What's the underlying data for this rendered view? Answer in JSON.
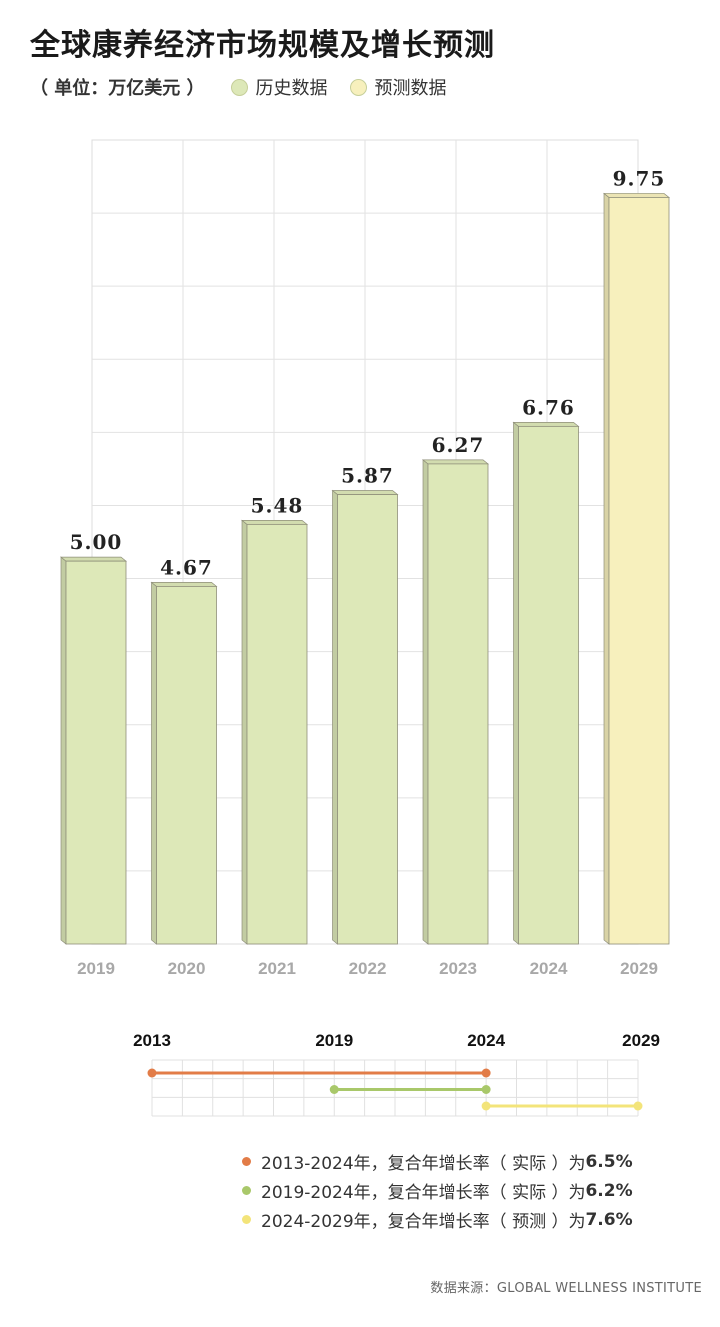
{
  "title": "全球康养经济市场规模及增长预测",
  "unit_label": "（ 单位：万亿美元 ）",
  "legend": [
    {
      "label": "历史数据",
      "color": "#dde8b8"
    },
    {
      "label": "预测数据",
      "color": "#f7f0bd"
    }
  ],
  "chart_data": [
    {
      "type": "bar",
      "categories": [
        "2019",
        "2020",
        "2021",
        "2022",
        "2023",
        "2024",
        "2029"
      ],
      "values": [
        5.0,
        4.67,
        5.48,
        5.87,
        6.27,
        6.76,
        9.75
      ],
      "value_labels": [
        "5.00",
        "4.67",
        "5.48",
        "5.87",
        "6.27",
        "6.76",
        "9.75"
      ],
      "kind": [
        "历史数据",
        "历史数据",
        "历史数据",
        "历史数据",
        "历史数据",
        "历史数据",
        "预测数据"
      ],
      "colors": {
        "历史数据": "#dde8b8",
        "预测数据": "#f7f0bd"
      },
      "ylim": [
        0,
        10.5
      ],
      "grid": true
    },
    {
      "type": "line",
      "x_ticks": [
        "2013",
        "2019",
        "2024",
        "2029"
      ],
      "series": [
        {
          "x": [
            2013,
            2024
          ],
          "color": "#e27c47"
        },
        {
          "x": [
            2019,
            2024
          ],
          "color": "#a9c86a"
        },
        {
          "x": [
            2024,
            2029
          ],
          "color": "#f3e47a"
        }
      ]
    }
  ],
  "cagr": [
    {
      "text": "2013-2024年，复合年增长率（ 实际 ）为",
      "value": "6.5%",
      "color": "#e27c47"
    },
    {
      "text": "2019-2024年，复合年增长率（ 实际 ）为",
      "value": "6.2%",
      "color": "#a9c86a"
    },
    {
      "text": "2024-2029年，复合年增长率（ 预测 ）为",
      "value": "7.6%",
      "color": "#f3e47a"
    }
  ],
  "source": "数据来源：GLOBAL WELLNESS INSTITUTE"
}
